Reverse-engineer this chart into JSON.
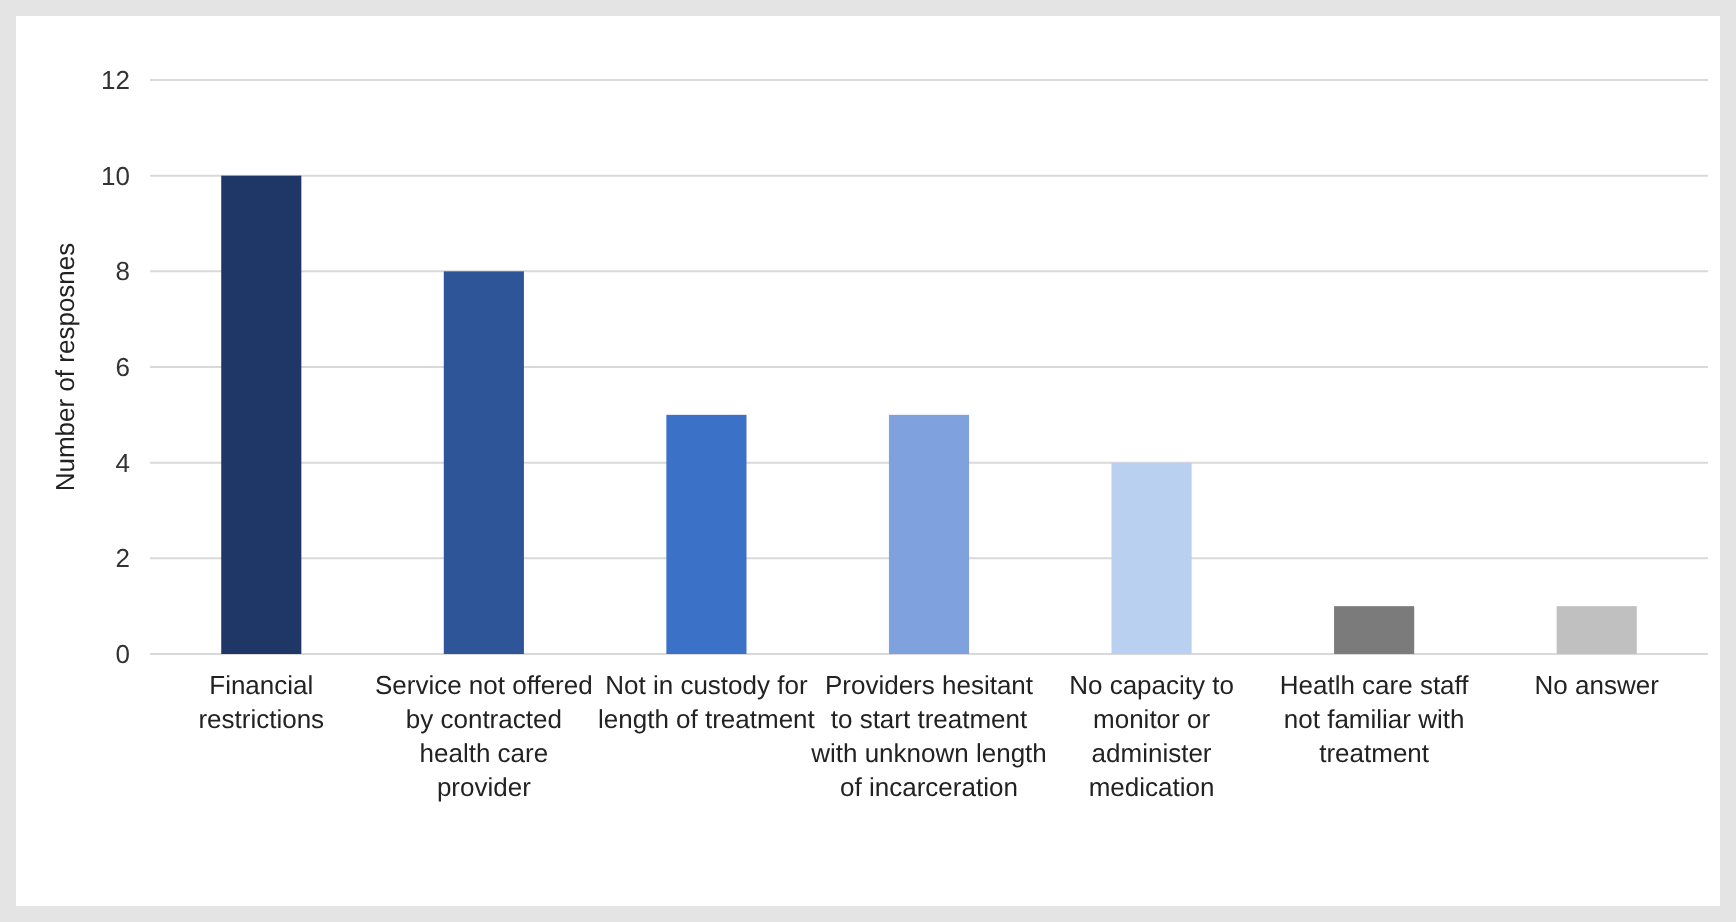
{
  "chart_data": {
    "type": "bar",
    "ylabel": "Number of resposnes",
    "categories": [
      "Financial restrictions",
      "Service not offered by contracted health care provider",
      "Not in custody for length of treatment",
      "Providers hesitant to start treatment with unknown length of incarceration",
      "No capacity to monitor or administer medication",
      "Heatlh care staff not familiar with treatment",
      "No answer"
    ],
    "values": [
      10,
      8,
      5,
      5,
      4,
      1,
      1
    ],
    "colors": [
      "#1f3766",
      "#2e5597",
      "#3b71c6",
      "#7fa1dd",
      "#b9d0f0",
      "#7b7b7b",
      "#c0c0c0"
    ],
    "ylim": [
      0,
      12
    ],
    "yticks": [
      0,
      2,
      4,
      6,
      8,
      10,
      12
    ],
    "grid": "y"
  }
}
